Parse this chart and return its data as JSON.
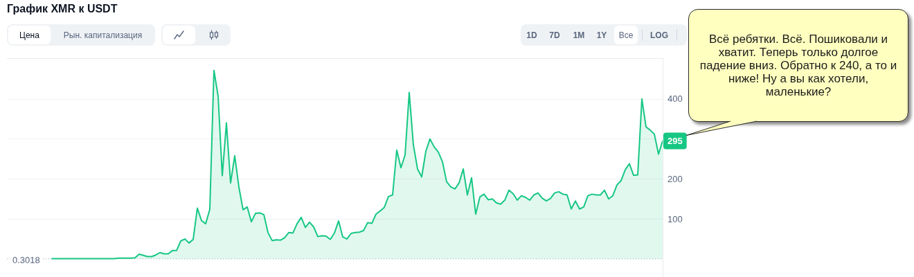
{
  "chart_data": {
    "type": "area",
    "title": "График XMR к USDT",
    "categories": [
      null,
      null,
      null,
      null,
      null,
      null,
      null,
      null,
      null,
      null,
      null,
      null,
      null,
      null,
      null,
      null,
      null,
      null,
      null,
      null,
      null,
      null,
      null,
      null,
      null,
      null,
      null,
      null,
      null,
      null,
      null,
      null,
      null,
      null,
      null,
      null,
      null,
      null,
      null,
      null,
      null,
      null,
      null,
      null,
      null,
      null,
      null,
      null,
      null,
      null,
      null,
      null,
      null,
      null,
      null,
      null,
      null,
      null,
      null,
      null,
      null,
      null,
      null,
      null,
      null,
      null,
      null,
      null,
      null,
      null,
      null,
      null,
      null,
      null,
      null,
      null,
      null,
      null,
      null,
      null,
      null,
      null,
      null,
      null,
      null,
      null,
      null,
      null,
      null,
      null,
      null,
      null,
      null,
      null,
      null,
      null,
      null,
      null,
      null,
      null,
      null,
      null,
      null,
      null,
      null,
      null,
      null,
      null,
      null,
      null,
      null,
      null,
      null,
      null,
      null,
      null,
      null,
      null,
      null,
      null,
      null,
      null,
      null,
      null,
      null,
      null,
      null,
      null,
      null,
      null,
      null,
      null,
      null,
      null,
      null,
      null,
      null,
      null,
      null,
      null,
      null,
      null,
      null,
      null,
      null,
      null,
      null,
      null
    ],
    "values": [
      1,
      1,
      1,
      1,
      1,
      1,
      1,
      1,
      1,
      1,
      1,
      1,
      1,
      1,
      1,
      1,
      2,
      2,
      2,
      2,
      3,
      12,
      9,
      6,
      6,
      10,
      16,
      13,
      13,
      21,
      21,
      45,
      50,
      40,
      49,
      127,
      96,
      88,
      124,
      471,
      407,
      208,
      340,
      190,
      258,
      180,
      123,
      130,
      93,
      114,
      115,
      111,
      66,
      46,
      48,
      47,
      53,
      66,
      65,
      88,
      104,
      79,
      92,
      80,
      56,
      58,
      57,
      49,
      65,
      95,
      55,
      50,
      64,
      66,
      67,
      71,
      91,
      89,
      112,
      120,
      129,
      156,
      160,
      272,
      228,
      260,
      416,
      285,
      225,
      205,
      269,
      300,
      280,
      267,
      243,
      193,
      180,
      175,
      190,
      225,
      160,
      203,
      112,
      155,
      162,
      148,
      150,
      140,
      137,
      147,
      172,
      163,
      147,
      158,
      154,
      147,
      160,
      165,
      152,
      145,
      151,
      165,
      168,
      162,
      160,
      125,
      145,
      125,
      130,
      158,
      162,
      160,
      160,
      172,
      150,
      158,
      185,
      196,
      223,
      238,
      209,
      210,
      400,
      330,
      322,
      312,
      262,
      295
    ],
    "value_labels": [
      null,
      null,
      null,
      null,
      null,
      null,
      null,
      null,
      null,
      null,
      null,
      null,
      null,
      null,
      null,
      null,
      null,
      null,
      null,
      null,
      null,
      null,
      null,
      null,
      null,
      null,
      null,
      null,
      null,
      null,
      null,
      null,
      null,
      null,
      null,
      null,
      null,
      null,
      null,
      null,
      null,
      null,
      null,
      null,
      null,
      null,
      null,
      null,
      null,
      null,
      null,
      null,
      null,
      null,
      null,
      null,
      null,
      null,
      null,
      null,
      null,
      null,
      null,
      null,
      null,
      null,
      null,
      null,
      null,
      null,
      null,
      null,
      null,
      null,
      null,
      null,
      null,
      null,
      null,
      null,
      null,
      null,
      null,
      null,
      null,
      null,
      null,
      null,
      null,
      null,
      null,
      null,
      null,
      null,
      null,
      null,
      null,
      null,
      null,
      null,
      null,
      null,
      null,
      null,
      null,
      null,
      null,
      null,
      null,
      null,
      null,
      null,
      null,
      null,
      null,
      null,
      null,
      null,
      null,
      null,
      null,
      null,
      null,
      null,
      null,
      null,
      null,
      null,
      null,
      null,
      null,
      null,
      null,
      null,
      null,
      null,
      null,
      null,
      null,
      null,
      null,
      null,
      null,
      null,
      null,
      null,
      null,
      "295"
    ],
    "color": "#16c784",
    "ylim": [
      -45,
      500
    ],
    "yticks": [
      100,
      200,
      {
        "value": 300,
        "label": null
      },
      400
    ],
    "grid": "y",
    "tick_labels": "y",
    "ref_lines": [
      {
        "axis": "y",
        "value": 0.3018,
        "label": "0.3018",
        "line_style": "dotted",
        "color": "#a1a7bb"
      }
    ],
    "annotations": [
      "Всё ребятки. Всё. Пошиковали и хватит. Теперь только долгое падение вниз. Обратно к 240, а то и ниже! Ну а вы как хотели, маленькие?",
      "Цена",
      "Рын. капитализация",
      "1D",
      "7D",
      "1M",
      "1Y",
      "Все",
      "LOG"
    ]
  }
}
